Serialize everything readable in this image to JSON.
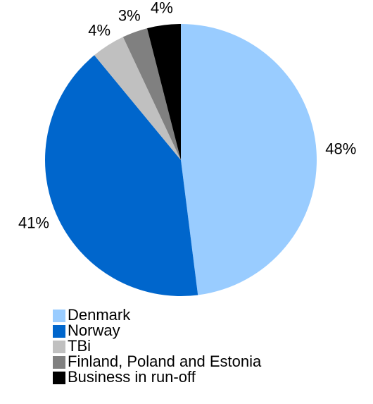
{
  "chart_data": {
    "type": "pie",
    "categories": [
      "Denmark",
      "Norway",
      "TBi",
      "Finland, Poland and Estonia",
      "Business in run-off"
    ],
    "values": [
      48,
      41,
      4,
      3,
      4
    ],
    "value_labels": [
      "48%",
      "41%",
      "4%",
      "3%",
      "4%"
    ],
    "colors": [
      "#99ccff",
      "#0066cc",
      "#c0c0c0",
      "#808080",
      "#000000"
    ],
    "legend": "bottom"
  }
}
